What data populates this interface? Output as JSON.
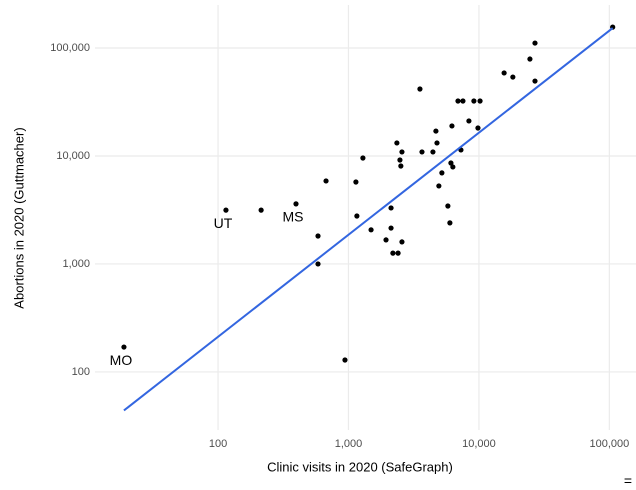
{
  "chart_data": {
    "type": "scatter",
    "x_label": "Clinic visits in 2020 (SafeGraph)",
    "y_label": "Abortions in 2020 (Guttmacher)",
    "log_x": true,
    "log_y": true,
    "grid": true,
    "xlim": [
      11.4,
      160000
    ],
    "ylim": [
      29,
      250000
    ],
    "xticks": [
      100,
      {
        "value": 1000,
        "label": "1,000"
      },
      {
        "value": 10000,
        "label": "10,000"
      },
      {
        "value": 100000,
        "label": "100,000"
      }
    ],
    "yticks": [
      100,
      {
        "value": 1000,
        "label": "1,000"
      },
      {
        "value": 10000,
        "label": "10,000"
      },
      {
        "value": 100000,
        "label": "100,000"
      }
    ],
    "color": "#000000",
    "x": [
      19,
      115,
      214,
      396,
      673,
      584,
      584,
      940,
      1140,
      1290,
      1160,
      1490,
      1940,
      2120,
      2120,
      2190,
      2400,
      2570,
      2350,
      2480,
      2570,
      2520,
      3530,
      3660,
      4440,
      4680,
      4770,
      4930,
      5200,
      5780,
      5990,
      6100,
      6310,
      6210,
      6910,
      7540,
      7280,
      8380,
      9150,
      10200,
      9830,
      15600,
      18200,
      24600,
      26900,
      26900,
      106000
    ],
    "y": [
      170,
      3150,
      3150,
      3600,
      5870,
      1815,
      1000,
      129,
      5740,
      9570,
      2780,
      2070,
      1670,
      3300,
      2150,
      1260,
      1260,
      1600,
      13200,
      9180,
      10900,
      8070,
      41700,
      10900,
      10900,
      17000,
      13200,
      5280,
      6970,
      3440,
      2400,
      8610,
      7910,
      18960,
      32300,
      32300,
      11370,
      21100,
      32300,
      32300,
      18150,
      58700,
      53800,
      79000,
      111000,
      49400,
      156000
    ],
    "trend": {
      "color": "#3366e0",
      "x": [
        19,
        106000
      ],
      "y": [
        44,
        153000
      ]
    },
    "annotations": [
      {
        "text": "MO",
        "x": 19,
        "y": 170
      },
      {
        "text": "UT",
        "x": 115,
        "y": 3150
      },
      {
        "text": "MS",
        "x": 396,
        "y": 3600
      }
    ]
  },
  "corner_text": "="
}
